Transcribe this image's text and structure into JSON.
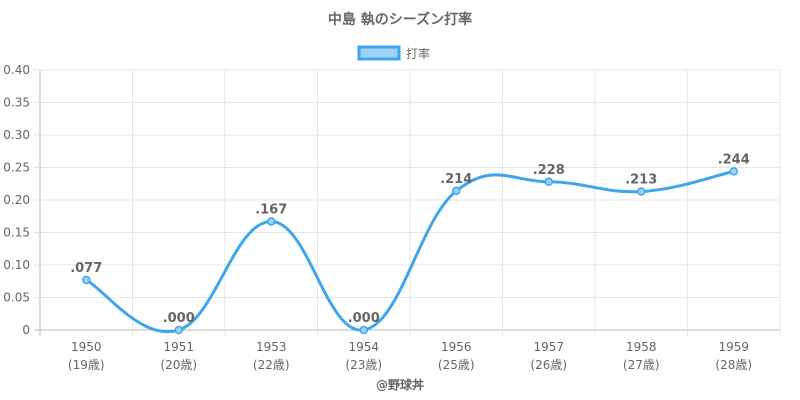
{
  "chart_data": {
    "type": "line",
    "title": "中島 執のシーズン打率",
    "legend": {
      "label": "打率",
      "position": "top"
    },
    "x": [
      "1950",
      "1951",
      "1953",
      "1954",
      "1956",
      "1957",
      "1958",
      "1959"
    ],
    "x_sublabels": [
      "(19歳)",
      "(20歳)",
      "(22歳)",
      "(23歳)",
      "(25歳)",
      "(26歳)",
      "(27歳)",
      "(28歳)"
    ],
    "series": [
      {
        "name": "打率",
        "values": [
          0.077,
          0.0,
          0.167,
          0.0,
          0.214,
          0.228,
          0.213,
          0.244
        ],
        "data_labels": [
          ".077",
          ".000",
          ".167",
          ".000",
          ".214",
          ".228",
          ".213",
          ".244"
        ]
      }
    ],
    "ylim": [
      0,
      0.4
    ],
    "yticks": [
      "0",
      "0.05",
      "0.10",
      "0.15",
      "0.20",
      "0.25",
      "0.30",
      "0.35",
      "0.40"
    ],
    "grid": true,
    "colors": {
      "line": "#3ea6ec",
      "fill": "#9fd1f5",
      "grid": "#e6e6e6",
      "text": "#666666"
    }
  },
  "credit": "@野球丼"
}
